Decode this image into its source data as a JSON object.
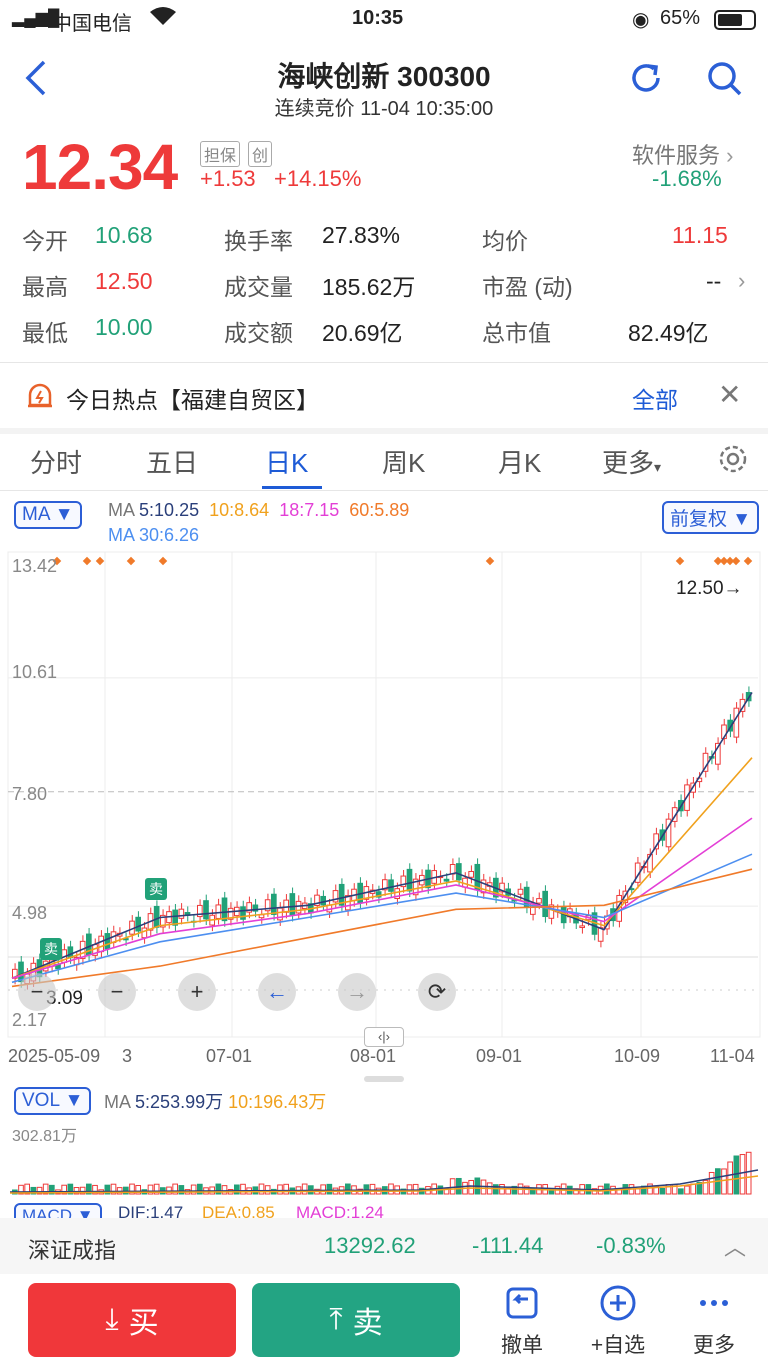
{
  "status_bar": {
    "carrier": "中国电信",
    "time": "10:35",
    "battery": "65%"
  },
  "header": {
    "title": "海峡创新 300300",
    "subtitle": "连续竞价 11-04 10:35:00"
  },
  "quote": {
    "price": "12.34",
    "badge1": "担保",
    "badge2": "创",
    "change": "+1.53",
    "change_pct": "+14.15%",
    "sector": "软件服务",
    "sector_pct": "-1.68%"
  },
  "stats": {
    "open_label": "今开",
    "open": "10.68",
    "high_label": "最高",
    "high": "12.50",
    "low_label": "最低",
    "low": "10.00",
    "turnover_label": "换手率",
    "turnover": "27.83%",
    "volume_label": "成交量",
    "volume": "185.62万",
    "amount_label": "成交额",
    "amount": "20.69亿",
    "avg_label": "均价",
    "avg": "11.15",
    "pe_label": "市盈 (动)",
    "pe": "--",
    "mcap_label": "总市值",
    "mcap": "82.49亿"
  },
  "hot": {
    "text": "今日热点【福建自贸区】",
    "all": "全部"
  },
  "tabs": [
    "分时",
    "五日",
    "日K",
    "周K",
    "月K",
    "更多"
  ],
  "ma_panel": {
    "select": "MA",
    "line1_prefix": "MA",
    "ma5": "5:10.25",
    "ma10": "10:8.64",
    "ma18": "18:7.15",
    "ma60": "60:5.89",
    "ma30": "MA 30:6.26",
    "adjust": "前复权"
  },
  "chart_axis": {
    "y1": "13.42",
    "y2": "10.61",
    "y3": "7.80",
    "y4": "4.98",
    "y5": "2.17",
    "high_label": "12.50→",
    "low_label": "3.09",
    "sell1": "卖",
    "sell2": "卖"
  },
  "x_labels": [
    "2025-05-09",
    "3",
    "07-01",
    "08-01",
    "09-01",
    "10-09",
    "11-04"
  ],
  "vol_panel": {
    "select": "VOL",
    "prefix": "MA",
    "ma5": "5:253.99万",
    "ma10": "10:196.43万",
    "max": "302.81万"
  },
  "macd_panel": {
    "select": "MACD",
    "dif": "DIF:1.47",
    "dea": "DEA:0.85",
    "macd": "MACD:1.24"
  },
  "index_bar": {
    "name": "深证成指",
    "value": "13292.62",
    "change": "-111.44",
    "pct": "-0.83%"
  },
  "bottom": {
    "buy": "买",
    "sell": "卖",
    "cancel": "撤单",
    "watch": "+自选",
    "more": "更多"
  },
  "chart_data": {
    "type": "line",
    "title": "",
    "x": [
      "2025-05-09",
      "07-01",
      "08-01",
      "09-01",
      "10-09",
      "11-04"
    ],
    "series": [
      {
        "name": "MA5",
        "values": [
          3.2,
          4.7,
          5.0,
          5.8,
          4.4,
          10.25
        ]
      },
      {
        "name": "MA10",
        "values": [
          3.2,
          4.5,
          4.9,
          5.6,
          4.5,
          8.64
        ]
      },
      {
        "name": "MA18",
        "values": [
          3.2,
          4.3,
          4.8,
          5.5,
          4.6,
          7.15
        ]
      },
      {
        "name": "MA30",
        "values": [
          3.1,
          4.1,
          4.7,
          5.3,
          4.7,
          6.26
        ]
      },
      {
        "name": "MA60",
        "values": [
          3.0,
          3.5,
          4.2,
          4.9,
          5.0,
          5.89
        ]
      }
    ],
    "ylim": [
      2.17,
      13.42
    ],
    "colors": {
      "up": "#ee3a3a",
      "down": "#21a178",
      "ma5": "#2a3f7a",
      "ma10": "#f0a11d",
      "ma18": "#e33fd6",
      "ma30": "#4d8ff0",
      "ma60": "#f07a2a"
    }
  }
}
